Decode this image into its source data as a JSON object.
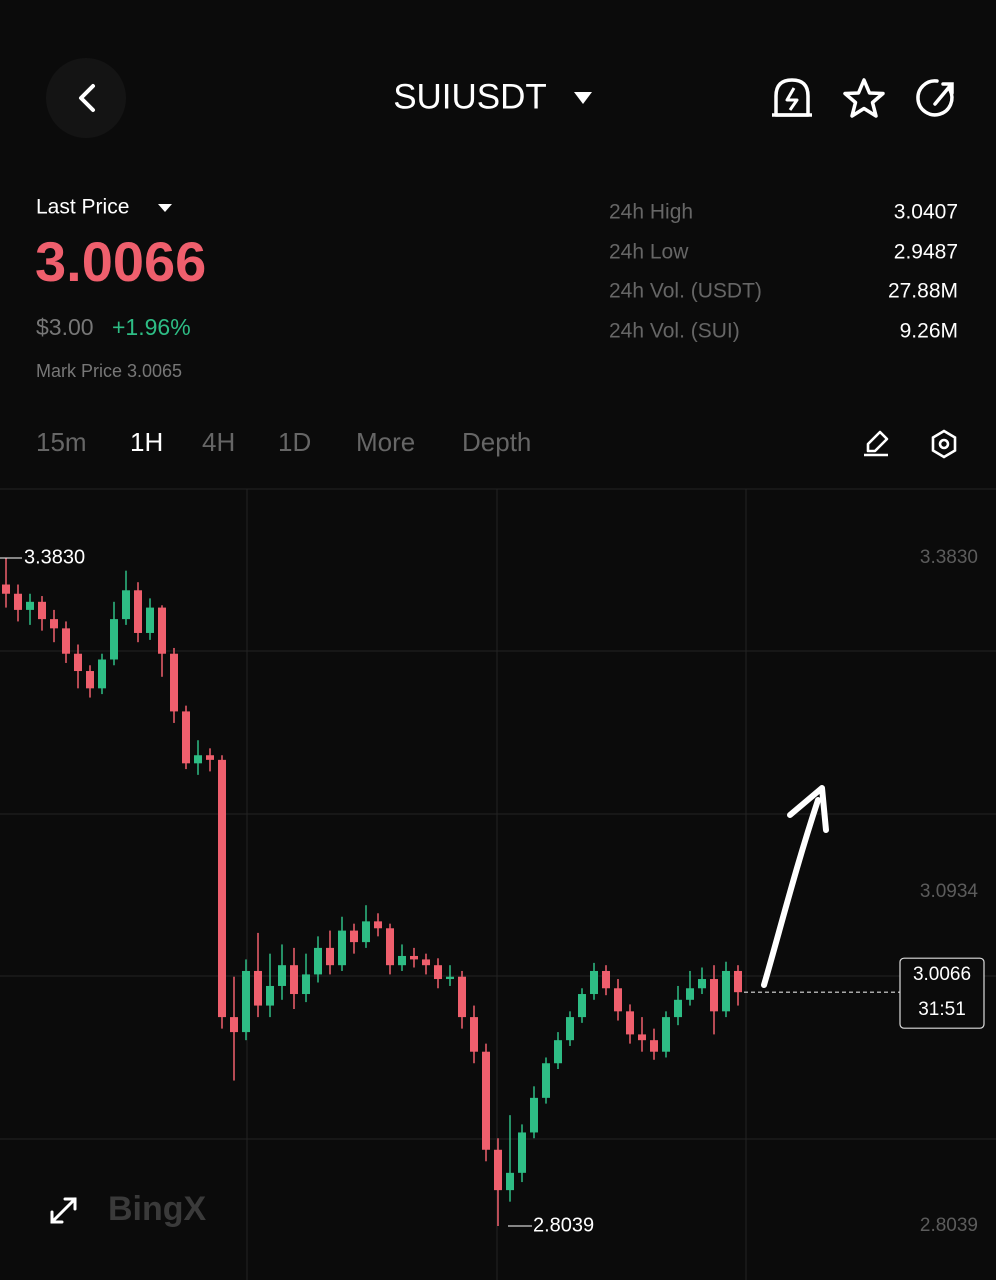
{
  "header": {
    "symbol": "SUIUSDT"
  },
  "ticker": {
    "last_price_label": "Last Price",
    "last_price": "3.0066",
    "usd_price": "$3.00",
    "change": "+1.96%",
    "mark_price": "Mark Price 3.0065",
    "stats": [
      [
        "24h High",
        "3.0407"
      ],
      [
        "24h Low",
        "2.9487"
      ],
      [
        "24h Vol. (USDT)",
        "27.88M"
      ],
      [
        "24h Vol. (SUI)",
        "9.26M"
      ]
    ]
  },
  "timeframes": [
    "15m",
    "1H",
    "4H",
    "1D",
    "More",
    "Depth"
  ],
  "watermark": "BingX",
  "chart_data": {
    "type": "candlestick",
    "open": [
      3.36,
      3.352,
      3.338,
      3.345,
      3.33,
      3.322,
      3.3,
      3.285,
      3.27,
      3.295,
      3.33,
      3.355,
      3.318,
      3.34,
      3.3,
      3.25,
      3.205,
      3.212,
      3.208,
      2.985,
      2.972,
      3.025,
      2.995,
      3.012,
      3.03,
      3.005,
      3.022,
      3.045,
      3.03,
      3.06,
      3.05,
      3.068,
      3.062,
      3.03,
      3.038,
      3.035,
      3.03,
      3.018,
      3.02,
      2.985,
      2.955,
      2.87,
      2.835,
      2.85,
      2.885,
      2.915,
      2.945,
      2.965,
      2.985,
      3.005,
      3.025,
      3.01,
      2.99,
      2.97,
      2.965,
      2.955,
      2.985,
      3.0,
      3.01,
      3.018,
      2.99,
      3.025
    ],
    "high": [
      3.383,
      3.36,
      3.352,
      3.35,
      3.338,
      3.328,
      3.308,
      3.29,
      3.3,
      3.345,
      3.372,
      3.362,
      3.348,
      3.342,
      3.305,
      3.255,
      3.225,
      3.218,
      3.212,
      3.02,
      3.035,
      3.058,
      3.04,
      3.048,
      3.045,
      3.04,
      3.055,
      3.06,
      3.072,
      3.066,
      3.082,
      3.075,
      3.066,
      3.048,
      3.045,
      3.04,
      3.036,
      3.03,
      3.025,
      2.995,
      2.962,
      2.88,
      2.9,
      2.892,
      2.925,
      2.95,
      2.972,
      2.99,
      3.01,
      3.032,
      3.03,
      3.018,
      2.996,
      2.985,
      2.975,
      2.99,
      3.012,
      3.025,
      3.028,
      3.03,
      3.033,
      3.03
    ],
    "low": [
      3.34,
      3.328,
      3.325,
      3.32,
      3.31,
      3.292,
      3.27,
      3.262,
      3.265,
      3.29,
      3.325,
      3.31,
      3.312,
      3.28,
      3.24,
      3.2,
      3.195,
      3.198,
      2.975,
      2.93,
      2.965,
      2.985,
      2.985,
      3.0,
      2.992,
      2.998,
      3.015,
      3.022,
      3.025,
      3.04,
      3.045,
      3.055,
      3.022,
      3.025,
      3.028,
      3.022,
      3.01,
      3.012,
      2.975,
      2.945,
      2.86,
      2.8039,
      2.825,
      2.842,
      2.88,
      2.91,
      2.94,
      2.96,
      2.98,
      3.0,
      3.004,
      2.982,
      2.962,
      2.955,
      2.948,
      2.95,
      2.978,
      2.995,
      3.005,
      2.97,
      2.985,
      2.995
    ],
    "close": [
      3.352,
      3.338,
      3.345,
      3.33,
      3.322,
      3.3,
      3.285,
      3.27,
      3.295,
      3.33,
      3.355,
      3.318,
      3.34,
      3.3,
      3.25,
      3.205,
      3.212,
      3.208,
      2.985,
      2.972,
      3.025,
      2.995,
      3.012,
      3.03,
      3.005,
      3.022,
      3.045,
      3.03,
      3.06,
      3.05,
      3.068,
      3.062,
      3.03,
      3.038,
      3.035,
      3.03,
      3.018,
      3.02,
      2.985,
      2.955,
      2.87,
      2.835,
      2.85,
      2.885,
      2.915,
      2.945,
      2.965,
      2.985,
      3.005,
      3.025,
      3.01,
      2.99,
      2.97,
      2.965,
      2.955,
      2.985,
      3.0,
      3.01,
      3.018,
      2.99,
      3.025,
      3.0066
    ],
    "up_color": "#2ebd85",
    "down_color": "#ef5f6d",
    "ylim": [
      2.7571,
      3.4428
    ],
    "yticks": [
      {
        "value": 3.383,
        "label": "3.3830"
      },
      {
        "value": 3.0934,
        "label": "3.0934"
      },
      {
        "value": 2.8039,
        "label": "2.8039"
      }
    ],
    "high_marker": {
      "value": 3.383,
      "label": "3.3830"
    },
    "low_marker": {
      "value": 2.8039,
      "label": "2.8039"
    },
    "current_price": {
      "value": 3.0066,
      "label": "3.0066"
    },
    "countdown": "31:51"
  }
}
